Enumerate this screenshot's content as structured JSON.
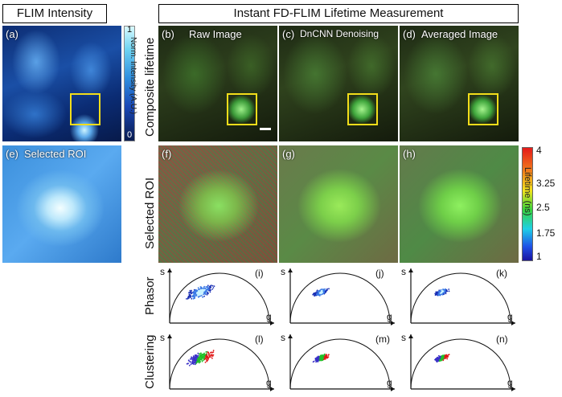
{
  "headers": {
    "left": "FLIM Intensity",
    "right": "Instant FD-FLIM Lifetime Measurement"
  },
  "panels": {
    "a": "(a)",
    "b": "(b)",
    "b_title": "Raw Image",
    "c": "(c)",
    "c_title": "DnCNN Denoising",
    "d": "(d)",
    "d_title": "Averaged Image",
    "e": "(e)",
    "e_title": "Selected ROI",
    "f": "(f)",
    "g": "(g)",
    "h": "(h)",
    "i": "(i)",
    "j": "(j)",
    "k": "(k)",
    "l": "(l)",
    "m": "(m)",
    "n": "(n)"
  },
  "row_labels": {
    "composite": "Composite lifetime",
    "roi": "Selected ROI",
    "phasor": "Phasor",
    "clustering": "Clustering"
  },
  "intensity_colorbar": {
    "title": "Norm. Intensity (A.U.)",
    "max": "1",
    "min": "0"
  },
  "lifetime_colorbar": {
    "title": "Lifetime (ns)",
    "ticks": [
      "4",
      "3.25",
      "2.5",
      "1.75",
      "1"
    ]
  },
  "phasor_axes": {
    "x": "g",
    "y": "s"
  },
  "colors": {
    "roi_box": "#f2dd1a",
    "phasor_blue": "#1a3fd6",
    "cluster_red": "#e01818",
    "cluster_green": "#22c02a",
    "cluster_blue": "#3a30c8"
  }
}
